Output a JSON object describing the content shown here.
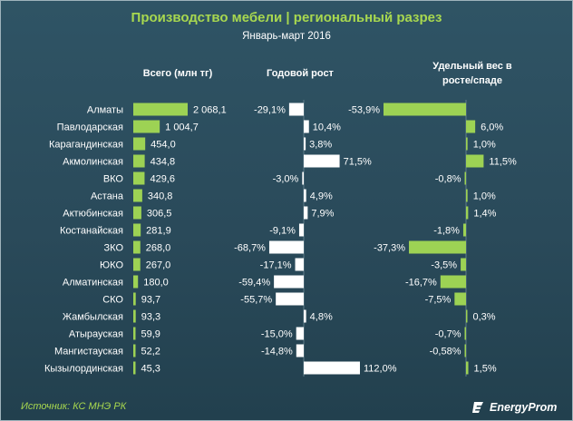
{
  "title": "Производство мебели | региональный разрез",
  "subtitle": "Январь-март 2016",
  "colors": {
    "bar_green": "#9dd254",
    "bar_white": "#ffffff",
    "title_green": "#a8d84f",
    "background": "#2e5060"
  },
  "chart_data": {
    "type": "bar",
    "title": "Производство мебели | региональный разрез",
    "subtitle": "Январь-март 2016",
    "categories": [
      "Алматы",
      "Павлодарская",
      "Карагандинская",
      "Акмолинская",
      "ВКО",
      "Астана",
      "Актюбинская",
      "Костанайская",
      "ЗКО",
      "ЮКО",
      "Алматинская",
      "СКО",
      "Жамбылская",
      "Атырауская",
      "Мангистауская",
      "Кызылординская"
    ],
    "series": [
      {
        "name": "Всего (млн тг)",
        "values": [
          2068.1,
          1004.7,
          454.0,
          434.8,
          429.6,
          340.8,
          306.5,
          281.9,
          268.0,
          267.0,
          180.0,
          93.7,
          93.3,
          59.9,
          52.2,
          45.3
        ],
        "labels": [
          "2 068,1",
          "1 004,7",
          "454,0",
          "434,8",
          "429,6",
          "340,8",
          "306,5",
          "281,9",
          "268,0",
          "267,0",
          "180,0",
          "93,7",
          "93,3",
          "59,9",
          "52,2",
          "45,3"
        ]
      },
      {
        "name": "Годовой рост",
        "values": [
          -29.1,
          10.4,
          3.8,
          71.5,
          -3.0,
          4.9,
          7.9,
          -9.1,
          -68.7,
          -17.1,
          -59.4,
          -55.7,
          4.8,
          -15.0,
          -14.8,
          112.0
        ],
        "labels": [
          "-29,1%",
          "10,4%",
          "3,8%",
          "71,5%",
          "-3,0%",
          "4,9%",
          "7,9%",
          "-9,1%",
          "-68,7%",
          "-17,1%",
          "-59,4%",
          "-55,7%",
          "4,8%",
          "-15,0%",
          "-14,8%",
          "112,0%"
        ]
      },
      {
        "name": "Удельный вес в росте/спаде",
        "values": [
          -53.9,
          6.0,
          1.0,
          11.5,
          -0.8,
          1.0,
          1.4,
          -1.8,
          -37.3,
          -3.5,
          -16.7,
          -7.5,
          0.3,
          -0.7,
          -0.58,
          1.5
        ],
        "labels": [
          "-53,9%",
          "6,0%",
          "1,0%",
          "11,5%",
          "-0,8%",
          "1,0%",
          "1,4%",
          "-1,8%",
          "-37,3%",
          "-3,5%",
          "-16,7%",
          "-7,5%",
          "0,3%",
          "-0,7%",
          "-0,58%",
          "1,5%"
        ]
      }
    ],
    "column_headers": [
      "Всего (млн тг)",
      "Годовой рост",
      "Удельный вес в\nросте/спаде"
    ]
  },
  "headers": {
    "total": "Всего (млн тг)",
    "growth": "Годовой рост",
    "share_line1": "Удельный вес в",
    "share_line2": "росте/спаде"
  },
  "source": "Источник: КС МНЭ РК",
  "brand": "EnergyProm"
}
